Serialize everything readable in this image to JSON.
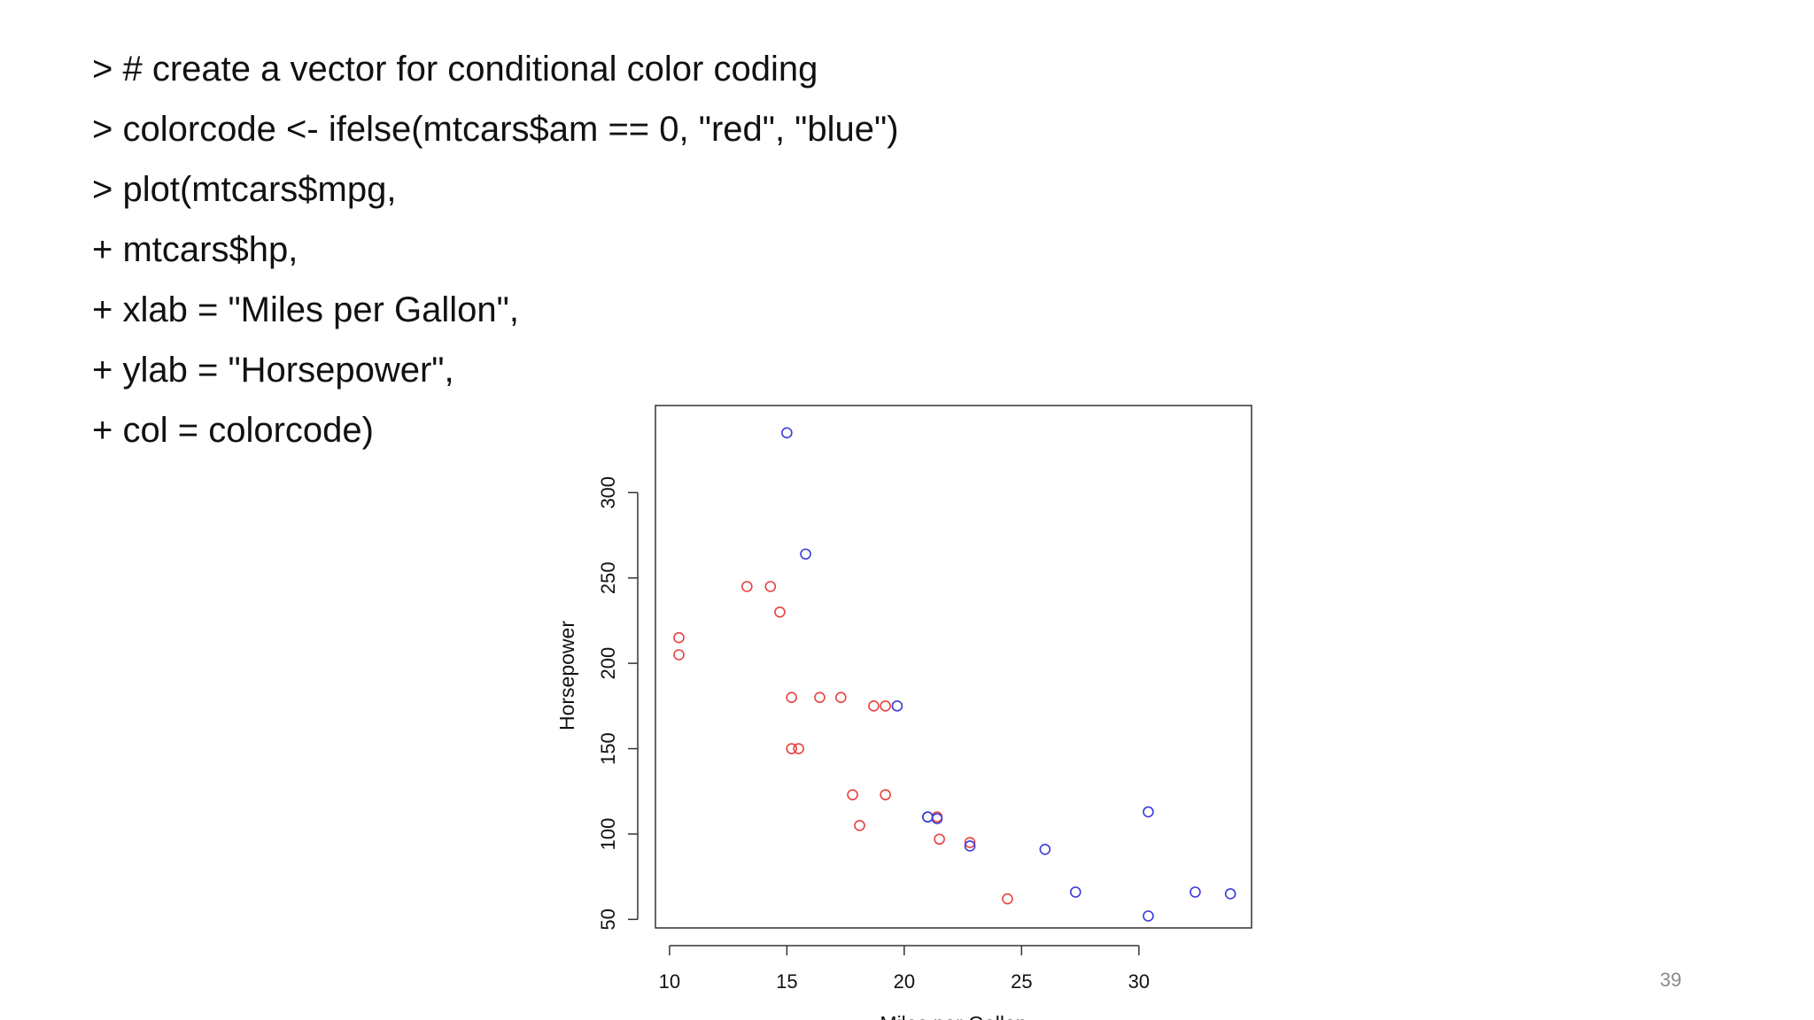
{
  "code_lines": [
    "> # create a vector for conditional color coding",
    "> colorcode <- ifelse(mtcars$am == 0, \"red\", \"blue\")",
    "> plot(mtcars$mpg,",
    "+ mtcars$hp,",
    "+ xlab = \"Miles per Gallon\",",
    "+ ylab = \"Horsepower\",",
    "+ col = colorcode)"
  ],
  "page_number": "39",
  "chart_data": {
    "type": "scatter",
    "title": "",
    "xlabel": "Miles per Gallon",
    "ylabel": "Horsepower",
    "xlim": [
      9.4,
      34.8
    ],
    "ylim": [
      45,
      351
    ],
    "x_ticks": [
      10,
      15,
      20,
      25,
      30
    ],
    "y_ticks": [
      50,
      100,
      150,
      200,
      250,
      300
    ],
    "grid": false,
    "colors": {
      "red": "#e8413f",
      "blue": "#3b3bdb"
    },
    "series": [
      {
        "color": "red",
        "x": [
          21.4,
          18.7,
          18.1,
          14.3,
          24.4,
          22.8,
          19.2,
          17.8,
          16.4,
          17.3,
          15.2,
          10.4,
          10.4,
          14.7,
          21.5,
          15.5,
          15.2,
          13.3,
          19.2
        ],
        "y": [
          110,
          175,
          105,
          245,
          62,
          95,
          123,
          123,
          180,
          180,
          180,
          205,
          215,
          230,
          97,
          150,
          150,
          245,
          175
        ]
      },
      {
        "color": "blue",
        "x": [
          21.0,
          21.0,
          22.8,
          32.4,
          30.4,
          33.9,
          27.3,
          26.0,
          30.4,
          15.8,
          19.7,
          15.0,
          21.4
        ],
        "y": [
          110,
          110,
          93,
          66,
          52,
          65,
          66,
          91,
          113,
          264,
          175,
          335,
          109
        ]
      }
    ]
  }
}
